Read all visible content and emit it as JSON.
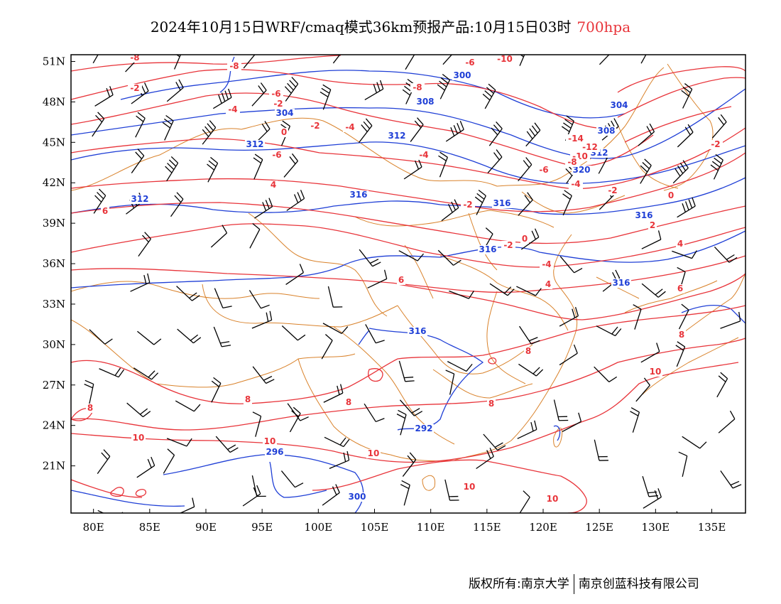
{
  "title": {
    "main": "2024年10月15日WRF/cmaq模式36km预报产品:10月15日03时",
    "level": "700hpa"
  },
  "map": {
    "lon_range": [
      78,
      138
    ],
    "lat_range": [
      17.5,
      51.5
    ],
    "x_ticks": [
      "80E",
      "85E",
      "90E",
      "95E",
      "100E",
      "105E",
      "110E",
      "115E",
      "120E",
      "125E",
      "130E",
      "135E"
    ],
    "y_ticks": [
      "51N",
      "48N",
      "45N",
      "42N",
      "39N",
      "36N",
      "33N",
      "30N",
      "27N",
      "24N",
      "21N"
    ],
    "colors": {
      "temperature": "#e8343a",
      "geopotential": "#1f3fd6",
      "border": "#d9822b",
      "wind": "#000000"
    },
    "height_labels": [
      "300",
      "304",
      "308",
      "312",
      "312",
      "312",
      "316",
      "316",
      "316",
      "316",
      "316",
      "316",
      "292",
      "296",
      "300",
      "304",
      "308",
      "312",
      "320"
    ],
    "temp_labels": [
      "-8",
      "-8",
      "-2",
      "-6",
      "-10",
      "-8",
      "-4",
      "-2",
      "0",
      "-2",
      "-6",
      "-4",
      "-14",
      "-12",
      "-10",
      "-8",
      "-6",
      "-4",
      "-2",
      "-2",
      "-4",
      "-2",
      "0",
      "-2",
      "0",
      "-4",
      "4",
      "-6",
      "2",
      "4",
      "4",
      "6",
      "6",
      "6",
      "8",
      "8",
      "8",
      "8",
      "8",
      "8",
      "10",
      "10",
      "10",
      "10",
      "10",
      "10"
    ],
    "icon": "wind-barb-icon"
  },
  "footer": {
    "copyright": "版权所有:南京大学",
    "company": "南京创蓝科技有限公司"
  }
}
